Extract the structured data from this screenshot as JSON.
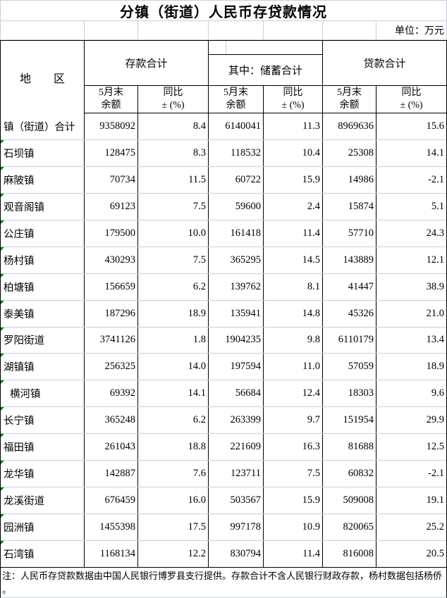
{
  "title": "分镇（街道）人民币存贷款情况",
  "unit_label": "单位：万元",
  "header": {
    "region_label": "地　　区",
    "group_deposits": "存款合计",
    "group_savings": "其中：储蓄合计",
    "group_loans": "贷款合计",
    "sub_balance_line1": "5月末",
    "sub_balance_line2": "余额",
    "sub_yoy_line1": "同比",
    "sub_yoy_line2": "± (%)"
  },
  "columns": [
    "地区",
    "存款合计5月末余额",
    "存款合计同比±(%)",
    "储蓄合计5月末余额",
    "储蓄合计同比±(%)",
    "贷款合计5月末余额",
    "贷款合计同比±(%)"
  ],
  "rows": [
    {
      "region": "镇（街道）合计",
      "marker": false,
      "indent": false,
      "values": [
        "9358092",
        "8.4",
        "6140041",
        "11.3",
        "8969636",
        "15.6"
      ]
    },
    {
      "region": "石坝镇",
      "marker": true,
      "indent": false,
      "values": [
        "128475",
        "8.3",
        "118532",
        "10.4",
        "25308",
        "14.1"
      ]
    },
    {
      "region": "麻陂镇",
      "marker": true,
      "indent": false,
      "values": [
        "70734",
        "11.5",
        "60722",
        "15.9",
        "14986",
        "-2.1"
      ]
    },
    {
      "region": "观音阁镇",
      "marker": true,
      "indent": false,
      "values": [
        "69123",
        "7.5",
        "59600",
        "2.4",
        "15874",
        "5.1"
      ]
    },
    {
      "region": "公庄镇",
      "marker": true,
      "indent": false,
      "values": [
        "179500",
        "10.0",
        "161418",
        "11.4",
        "57710",
        "24.3"
      ]
    },
    {
      "region": "杨村镇",
      "marker": true,
      "indent": false,
      "values": [
        "430293",
        "7.5",
        "365295",
        "14.5",
        "143889",
        "12.1"
      ]
    },
    {
      "region": "柏塘镇",
      "marker": true,
      "indent": false,
      "values": [
        "156659",
        "6.2",
        "139762",
        "8.1",
        "41447",
        "38.9"
      ]
    },
    {
      "region": "泰美镇",
      "marker": true,
      "indent": false,
      "values": [
        "187296",
        "18.9",
        "135941",
        "14.8",
        "45326",
        "21.0"
      ]
    },
    {
      "region": "罗阳街道",
      "marker": true,
      "indent": false,
      "values": [
        "3741126",
        "1.8",
        "1904235",
        "9.8",
        "6110179",
        "13.4"
      ]
    },
    {
      "region": "湖镇镇",
      "marker": true,
      "indent": false,
      "values": [
        "256325",
        "14.0",
        "197594",
        "11.0",
        "57059",
        "18.9"
      ]
    },
    {
      "region": "横河镇",
      "marker": true,
      "indent": true,
      "values": [
        "69392",
        "14.1",
        "56684",
        "12.4",
        "18303",
        "9.6"
      ]
    },
    {
      "region": "长宁镇",
      "marker": true,
      "indent": false,
      "values": [
        "365248",
        "6.2",
        "263399",
        "9.7",
        "151954",
        "29.9"
      ]
    },
    {
      "region": "福田镇",
      "marker": true,
      "indent": false,
      "values": [
        "261043",
        "18.8",
        "221609",
        "16.3",
        "81688",
        "12.5"
      ]
    },
    {
      "region": "龙华镇",
      "marker": true,
      "indent": false,
      "values": [
        "142887",
        "7.6",
        "123711",
        "7.5",
        "60832",
        "-2.1"
      ]
    },
    {
      "region": "龙溪街道",
      "marker": true,
      "indent": false,
      "values": [
        "676459",
        "16.0",
        "503567",
        "15.9",
        "509008",
        "19.1"
      ]
    },
    {
      "region": "园洲镇",
      "marker": true,
      "indent": false,
      "values": [
        "1455398",
        "17.5",
        "997178",
        "10.9",
        "820065",
        "25.2"
      ]
    },
    {
      "region": "石湾镇",
      "marker": true,
      "indent": false,
      "values": [
        "1168134",
        "12.2",
        "830794",
        "11.4",
        "816008",
        "20.5"
      ]
    }
  ],
  "note": {
    "line1": "注：人民币存贷款数据由中国人民银行博罗县支行提供。存款合计不含人民银行财政存款，杨村数据包括杨侨",
    "line2": "。"
  },
  "colors": {
    "grid_line": "#c9cfdf",
    "table_border": "#000000",
    "comment_triangle": "#0a7d0a",
    "background": "#ffffff",
    "text": "#000000"
  }
}
